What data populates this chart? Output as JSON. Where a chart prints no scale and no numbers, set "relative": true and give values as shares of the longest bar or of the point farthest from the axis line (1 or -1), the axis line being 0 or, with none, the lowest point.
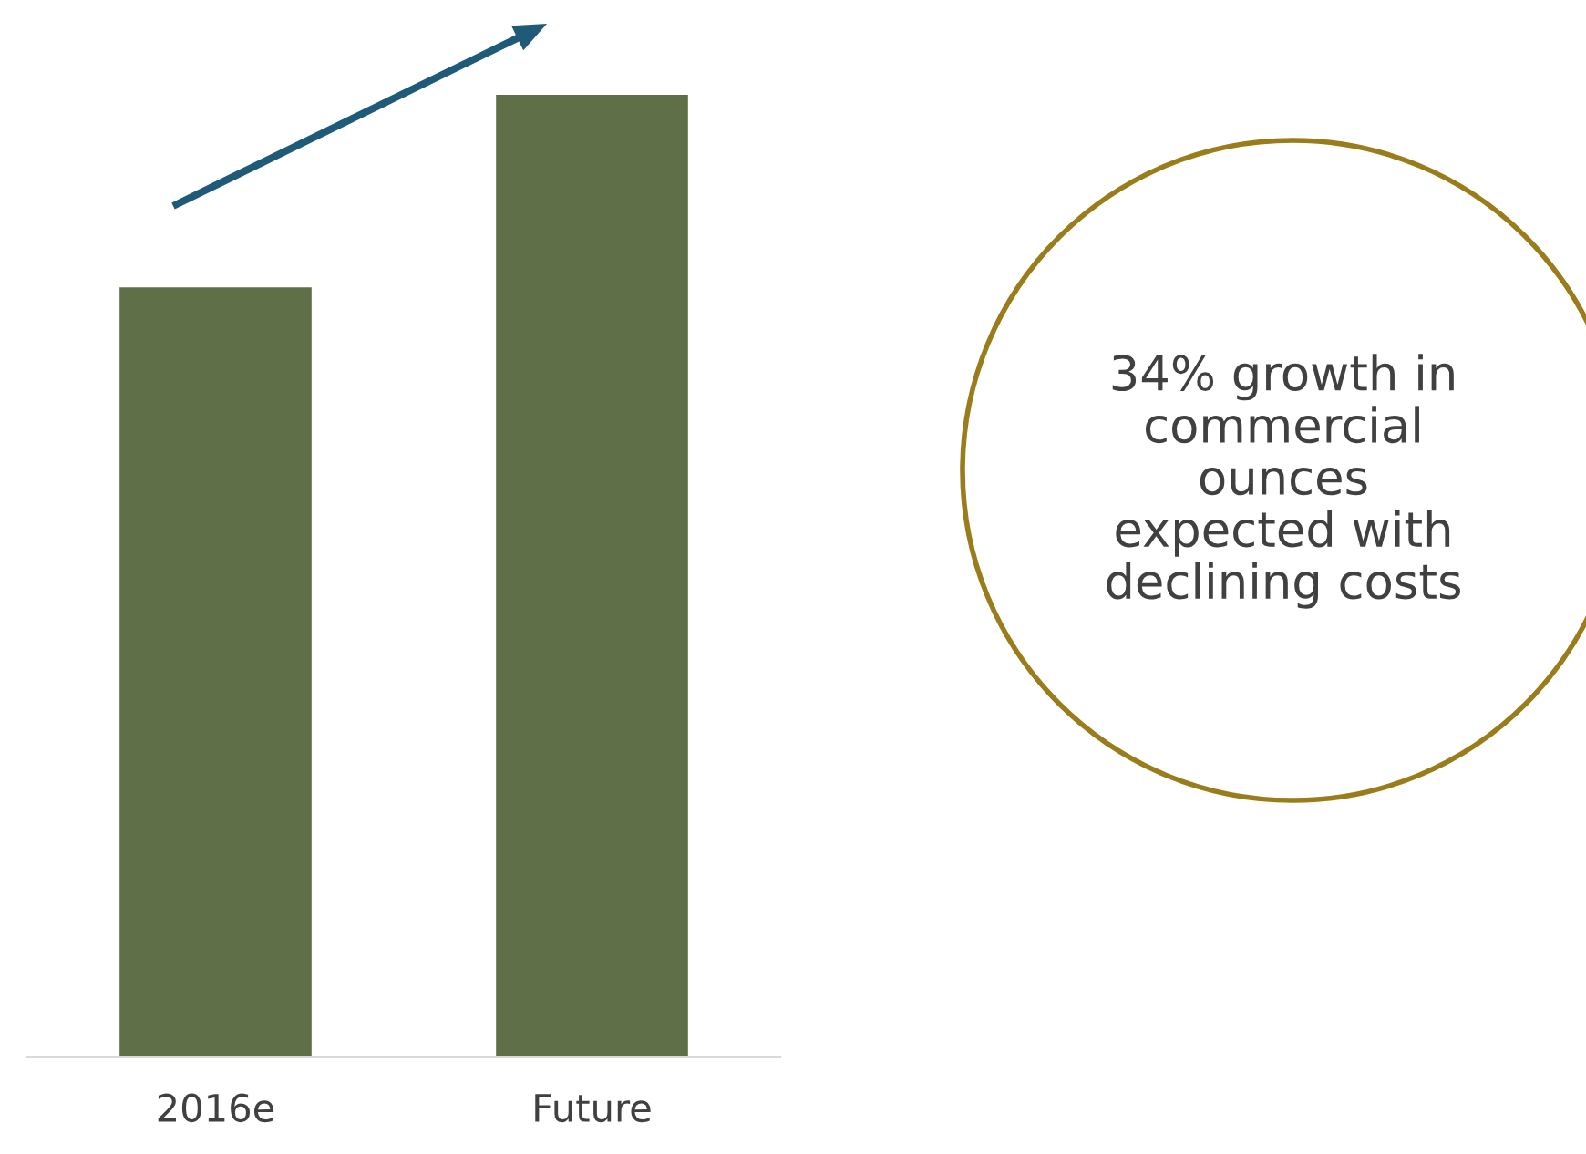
{
  "chart_data": {
    "type": "bar",
    "relative": true,
    "categories": [
      "2016e",
      "Future"
    ],
    "values": [
      0.8,
      1
    ],
    "color": "#5f7048",
    "grid": false,
    "annotations": [
      "34% growth in\ncommercial\nounces\nexpected with\ndeclining costs"
    ]
  }
}
